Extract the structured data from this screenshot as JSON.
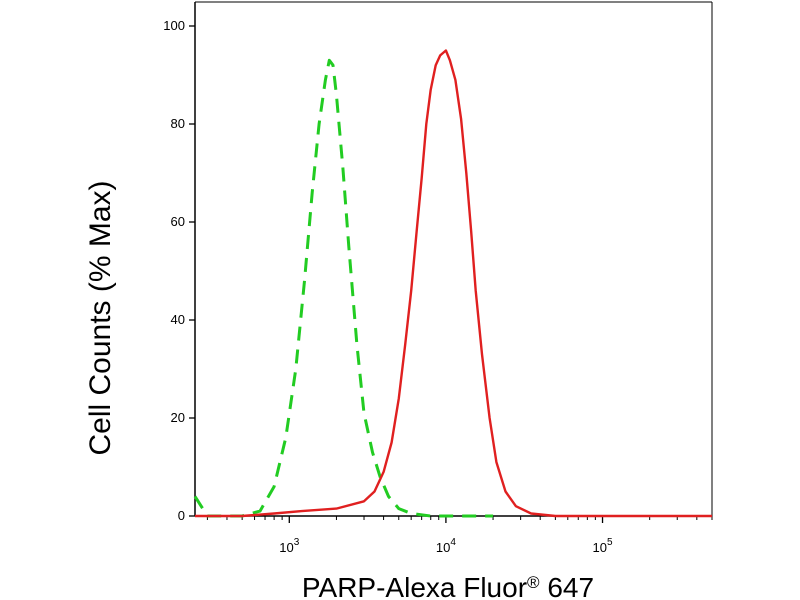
{
  "chart_data": {
    "type": "line",
    "xlabel": "PARP-Alexa Fluor",
    "xlabel_superscript": "®",
    "xlabel_suffix": " 647",
    "ylabel": "Cell Counts (% Max)",
    "x_scale": "log",
    "xlim": [
      250,
      500000
    ],
    "ylim": [
      0,
      100
    ],
    "yticks": [
      0,
      20,
      40,
      60,
      80,
      100
    ],
    "xticks": [
      {
        "value": 1000,
        "base": "10",
        "exp": "3"
      },
      {
        "value": 10000,
        "base": "10",
        "exp": "4"
      },
      {
        "value": 100000,
        "base": "10",
        "exp": "5"
      }
    ],
    "grid": false,
    "series": [
      {
        "color": "#22cc22",
        "dash": "dashed",
        "points": [
          [
            250,
            4
          ],
          [
            300,
            0
          ],
          [
            500,
            0
          ],
          [
            650,
            1
          ],
          [
            800,
            6
          ],
          [
            950,
            16
          ],
          [
            1100,
            30
          ],
          [
            1250,
            48
          ],
          [
            1400,
            66
          ],
          [
            1550,
            80
          ],
          [
            1700,
            89
          ],
          [
            1800,
            93
          ],
          [
            1900,
            92
          ],
          [
            2000,
            86
          ],
          [
            2200,
            71
          ],
          [
            2400,
            55
          ],
          [
            2700,
            35
          ],
          [
            3000,
            21
          ],
          [
            3400,
            13
          ],
          [
            3800,
            8
          ],
          [
            4300,
            4
          ],
          [
            5000,
            1.5
          ],
          [
            6000,
            0.5
          ],
          [
            8000,
            0
          ],
          [
            20000,
            0
          ]
        ]
      },
      {
        "color": "#e02020",
        "dash": "solid",
        "points": [
          [
            250,
            0
          ],
          [
            500,
            0
          ],
          [
            800,
            0.5
          ],
          [
            1200,
            1
          ],
          [
            2000,
            1.5
          ],
          [
            3000,
            3
          ],
          [
            3500,
            5
          ],
          [
            4000,
            9
          ],
          [
            4500,
            15
          ],
          [
            5000,
            24
          ],
          [
            5500,
            35
          ],
          [
            6000,
            46
          ],
          [
            6500,
            58
          ],
          [
            7000,
            69
          ],
          [
            7500,
            80
          ],
          [
            8000,
            87
          ],
          [
            8600,
            92
          ],
          [
            9200,
            94
          ],
          [
            10000,
            95
          ],
          [
            10600,
            93
          ],
          [
            11500,
            89
          ],
          [
            12500,
            81
          ],
          [
            13500,
            70
          ],
          [
            14500,
            58
          ],
          [
            15500,
            46
          ],
          [
            17000,
            33
          ],
          [
            19000,
            20
          ],
          [
            21000,
            11
          ],
          [
            24000,
            5
          ],
          [
            28000,
            2
          ],
          [
            35000,
            0.5
          ],
          [
            50000,
            0
          ],
          [
            200000,
            0
          ],
          [
            500000,
            0
          ]
        ]
      }
    ]
  }
}
